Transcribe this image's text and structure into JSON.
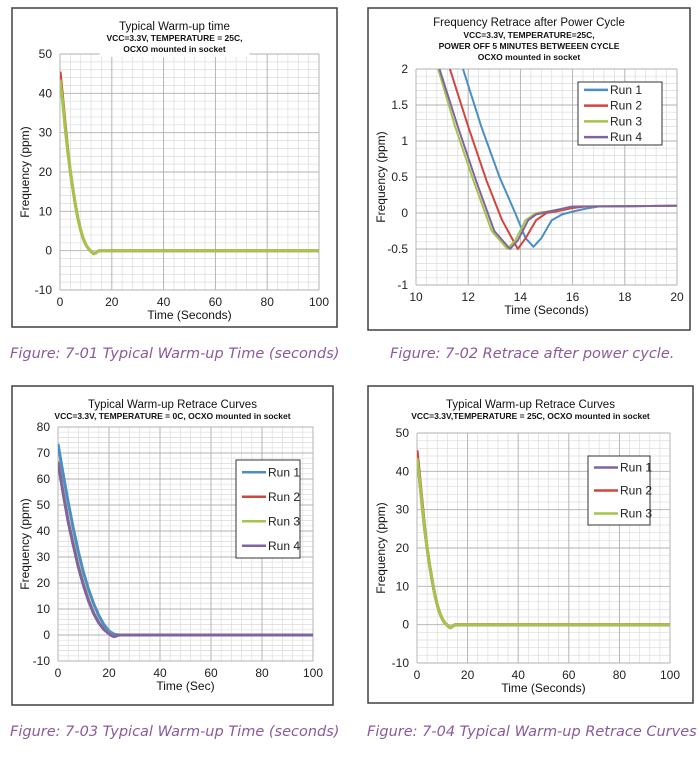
{
  "captions": [
    "Figure: 7-01 Typical Warm-up Time (seconds)",
    "Figure: 7-02 Retrace after power cycle.",
    "Figure: 7-03 Typical Warm-up Time (seconds)",
    "Figure: 7-04 Typical Warm-up Retrace Curves"
  ],
  "colors": {
    "blue": "#4a8ec6",
    "red": "#d0463f",
    "green": "#a5c44a",
    "purple": "#8064a2",
    "caption": "#8a5a9c"
  },
  "chart_data": [
    {
      "type": "line",
      "title": "Typical Warm-up time",
      "subtitle": [
        "VCC=3.3V, TEMPERATURE = 25C,",
        "OCXO mounted in socket"
      ],
      "xlabel": "Time (Seconds)",
      "ylabel": "Frequency (ppm)",
      "xlim": [
        0,
        100
      ],
      "ylim": [
        -10,
        50
      ],
      "xticks": [
        0,
        20,
        40,
        60,
        80,
        100
      ],
      "yticks": [
        -10,
        0,
        10,
        20,
        30,
        40,
        50
      ],
      "grid": true,
      "legend": "none",
      "series": [
        {
          "color": "#d0463f",
          "points": [
            [
              0,
              45.5
            ],
            [
              1,
              39
            ],
            [
              2,
              32
            ],
            [
              3,
              25.5
            ],
            [
              4,
              20
            ],
            [
              5,
              15.5
            ],
            [
              6,
              11.5
            ],
            [
              7,
              8
            ],
            [
              8,
              5.2
            ],
            [
              9,
              3
            ],
            [
              10,
              1.5
            ],
            [
              11,
              0.5
            ],
            [
              12,
              -0.2
            ],
            [
              13,
              -0.8
            ],
            [
              14,
              -0.5
            ],
            [
              15,
              0
            ],
            [
              20,
              0
            ],
            [
              100,
              0
            ]
          ]
        },
        {
          "color": "#a5c44a",
          "points": [
            [
              0,
              43.5
            ],
            [
              1,
              38
            ],
            [
              2,
              31
            ],
            [
              3,
              25
            ],
            [
              4,
              20
            ],
            [
              5,
              15.5
            ],
            [
              6,
              11.5
            ],
            [
              7,
              8
            ],
            [
              8,
              5.2
            ],
            [
              9,
              3
            ],
            [
              10,
              1.5
            ],
            [
              11,
              0.5
            ],
            [
              12,
              -0.2
            ],
            [
              13,
              -0.8
            ],
            [
              14,
              -0.5
            ],
            [
              15,
              0
            ],
            [
              20,
              0
            ],
            [
              100,
              0
            ]
          ]
        }
      ]
    },
    {
      "type": "line",
      "title": "Frequency Retrace after Power Cycle",
      "subtitle": [
        "VCC=3.3V, TEMPERATURE=25C,",
        "POWER OFF 5 MINUTES BETWEEEN CYCLE",
        "OCXO mounted in socket"
      ],
      "xlabel": "Time (Seconds)",
      "ylabel": "Frequency (ppm)",
      "xlim": [
        10,
        20
      ],
      "ylim": [
        -1,
        2
      ],
      "xticks": [
        10,
        12,
        14,
        16,
        18,
        20
      ],
      "yticks": [
        -1,
        -0.5,
        0,
        0.5,
        1,
        1.5,
        2
      ],
      "grid": true,
      "legend": "top-right",
      "series": [
        {
          "name": "Run 1",
          "color": "#4a8ec6",
          "points": [
            [
              11.8,
              2
            ],
            [
              12.5,
              1.2
            ],
            [
              13.2,
              0.5
            ],
            [
              13.8,
              0
            ],
            [
              14.2,
              -0.35
            ],
            [
              14.5,
              -0.47
            ],
            [
              14.8,
              -0.35
            ],
            [
              15.2,
              -0.1
            ],
            [
              15.6,
              -0.02
            ],
            [
              16,
              0.02
            ],
            [
              16.5,
              0.06
            ],
            [
              17,
              0.09
            ],
            [
              20,
              0.1
            ]
          ]
        },
        {
          "name": "Run 2",
          "color": "#d0463f",
          "points": [
            [
              11.3,
              2
            ],
            [
              12,
              1.2
            ],
            [
              12.7,
              0.45
            ],
            [
              13.3,
              -0.1
            ],
            [
              13.9,
              -0.5
            ],
            [
              14.2,
              -0.35
            ],
            [
              14.6,
              -0.1
            ],
            [
              15,
              0
            ],
            [
              15.5,
              0.03
            ],
            [
              16,
              0.07
            ],
            [
              16.5,
              0.09
            ],
            [
              20,
              0.1
            ]
          ]
        },
        {
          "name": "Run 3",
          "color": "#a5c44a",
          "points": [
            [
              10.85,
              2
            ],
            [
              11.5,
              1.2
            ],
            [
              12.2,
              0.45
            ],
            [
              12.9,
              -0.25
            ],
            [
              13.5,
              -0.5
            ],
            [
              13.8,
              -0.38
            ],
            [
              14.2,
              -0.1
            ],
            [
              14.6,
              0
            ],
            [
              15,
              0.02
            ],
            [
              15.5,
              0.05
            ],
            [
              16,
              0.09
            ],
            [
              20,
              0.1
            ]
          ]
        },
        {
          "name": "Run 4",
          "color": "#8064a2",
          "points": [
            [
              10.9,
              2
            ],
            [
              11.6,
              1.2
            ],
            [
              12.3,
              0.45
            ],
            [
              13,
              -0.25
            ],
            [
              13.6,
              -0.5
            ],
            [
              13.9,
              -0.38
            ],
            [
              14.3,
              -0.1
            ],
            [
              14.6,
              -0.02
            ],
            [
              15.1,
              0.02
            ],
            [
              15.6,
              0.06
            ],
            [
              16,
              0.09
            ],
            [
              20,
              0.1
            ]
          ]
        }
      ]
    },
    {
      "type": "line",
      "title": "Typical Warm-up  Retrace Curves",
      "subtitle": [
        "VCC=3.3V, TEMPERATURE = 0C, OCXO mounted in socket"
      ],
      "xlabel": "Time (Sec)",
      "ylabel": "Frequency (ppm)",
      "xlim": [
        0,
        100
      ],
      "ylim": [
        -10,
        80
      ],
      "xticks": [
        0,
        20,
        40,
        60,
        80,
        100
      ],
      "yticks": [
        -10,
        0,
        10,
        20,
        30,
        40,
        50,
        60,
        70,
        80
      ],
      "grid": true,
      "legend": "right",
      "series": [
        {
          "name": "Run 1",
          "color": "#4a8ec6",
          "points": [
            [
              0,
              73.5
            ],
            [
              2,
              62
            ],
            [
              4,
              51
            ],
            [
              6,
              41
            ],
            [
              8,
              32
            ],
            [
              10,
              24
            ],
            [
              12,
              17.5
            ],
            [
              14,
              12
            ],
            [
              16,
              7.5
            ],
            [
              18,
              4
            ],
            [
              20,
              1.5
            ],
            [
              22,
              0.3
            ],
            [
              24,
              0
            ],
            [
              100,
              0
            ]
          ]
        },
        {
          "name": "Run 2",
          "color": "#d0463f",
          "points": [
            [
              0,
              67
            ],
            [
              2,
              55
            ],
            [
              4,
              44
            ],
            [
              6,
              35
            ],
            [
              8,
              26.5
            ],
            [
              10,
              19.5
            ],
            [
              12,
              13.5
            ],
            [
              14,
              8.5
            ],
            [
              16,
              4.8
            ],
            [
              18,
              2.2
            ],
            [
              20,
              0.6
            ],
            [
              21,
              -0.2
            ],
            [
              22,
              -0.6
            ],
            [
              24,
              0
            ],
            [
              100,
              0
            ]
          ]
        },
        {
          "name": "Run 3",
          "color": "#a5c44a",
          "points": [
            [
              0,
              67
            ],
            [
              2,
              55
            ],
            [
              4,
              44
            ],
            [
              6,
              35
            ],
            [
              8,
              26.5
            ],
            [
              10,
              19.5
            ],
            [
              12,
              13.5
            ],
            [
              14,
              8.5
            ],
            [
              16,
              4.8
            ],
            [
              18,
              2.2
            ],
            [
              20,
              0.6
            ],
            [
              21,
              -0.2
            ],
            [
              22,
              -0.6
            ],
            [
              24,
              0
            ],
            [
              100,
              0
            ]
          ]
        },
        {
          "name": "Run 4",
          "color": "#8064a2",
          "points": [
            [
              0,
              66.5
            ],
            [
              2,
              54.5
            ],
            [
              4,
              43.5
            ],
            [
              6,
              34.5
            ],
            [
              8,
              26
            ],
            [
              10,
              19
            ],
            [
              12,
              13
            ],
            [
              14,
              8.2
            ],
            [
              16,
              4.6
            ],
            [
              18,
              2.1
            ],
            [
              20,
              0.5
            ],
            [
              21,
              -0.2
            ],
            [
              22,
              -0.6
            ],
            [
              24,
              0
            ],
            [
              100,
              0
            ]
          ]
        }
      ]
    },
    {
      "type": "line",
      "title": "Typical Warm-up Retrace Curves",
      "subtitle": [
        "VCC=3.3V,TEMPERATURE = 25C, OCXO mounted in socket"
      ],
      "xlabel": "Time (Seconds)",
      "ylabel": "Frequency (ppm)",
      "xlim": [
        0,
        100
      ],
      "ylim": [
        -10,
        50
      ],
      "xticks": [
        0,
        20,
        40,
        60,
        80,
        100
      ],
      "yticks": [
        -10,
        0,
        10,
        20,
        30,
        40,
        50
      ],
      "grid": true,
      "legend": "right",
      "series": [
        {
          "name": "Run 1",
          "color": "#8064a2",
          "points": [
            [
              0,
              44
            ],
            [
              1,
              38
            ],
            [
              2,
              31
            ],
            [
              3,
              25
            ],
            [
              4,
              20
            ],
            [
              5,
              15.5
            ],
            [
              6,
              11.5
            ],
            [
              7,
              8
            ],
            [
              8,
              5.2
            ],
            [
              9,
              3
            ],
            [
              10,
              1.5
            ],
            [
              11,
              0.5
            ],
            [
              12,
              -0.2
            ],
            [
              13,
              -0.8
            ],
            [
              14,
              -0.5
            ],
            [
              15,
              0
            ],
            [
              20,
              0
            ],
            [
              100,
              0
            ]
          ]
        },
        {
          "name": "Run 2",
          "color": "#d0463f",
          "points": [
            [
              0,
              45.5
            ],
            [
              1,
              39
            ],
            [
              2,
              32
            ],
            [
              3,
              25.5
            ],
            [
              4,
              20
            ],
            [
              5,
              15.5
            ],
            [
              6,
              11.5
            ],
            [
              7,
              8
            ],
            [
              8,
              5.2
            ],
            [
              9,
              3
            ],
            [
              10,
              1.5
            ],
            [
              11,
              0.5
            ],
            [
              12,
              -0.2
            ],
            [
              13,
              -0.8
            ],
            [
              14,
              -0.5
            ],
            [
              15,
              0
            ],
            [
              20,
              0
            ],
            [
              100,
              0
            ]
          ]
        },
        {
          "name": "Run 3",
          "color": "#a5c44a",
          "points": [
            [
              0,
              43.5
            ],
            [
              1,
              38
            ],
            [
              2,
              31
            ],
            [
              3,
              25
            ],
            [
              4,
              20
            ],
            [
              5,
              15.5
            ],
            [
              6,
              11.5
            ],
            [
              7,
              8
            ],
            [
              8,
              5.2
            ],
            [
              9,
              3
            ],
            [
              10,
              1.5
            ],
            [
              11,
              0.5
            ],
            [
              12,
              -0.2
            ],
            [
              13,
              -0.8
            ],
            [
              14,
              -0.5
            ],
            [
              15,
              0
            ],
            [
              20,
              0
            ],
            [
              100,
              0
            ]
          ]
        }
      ]
    }
  ]
}
